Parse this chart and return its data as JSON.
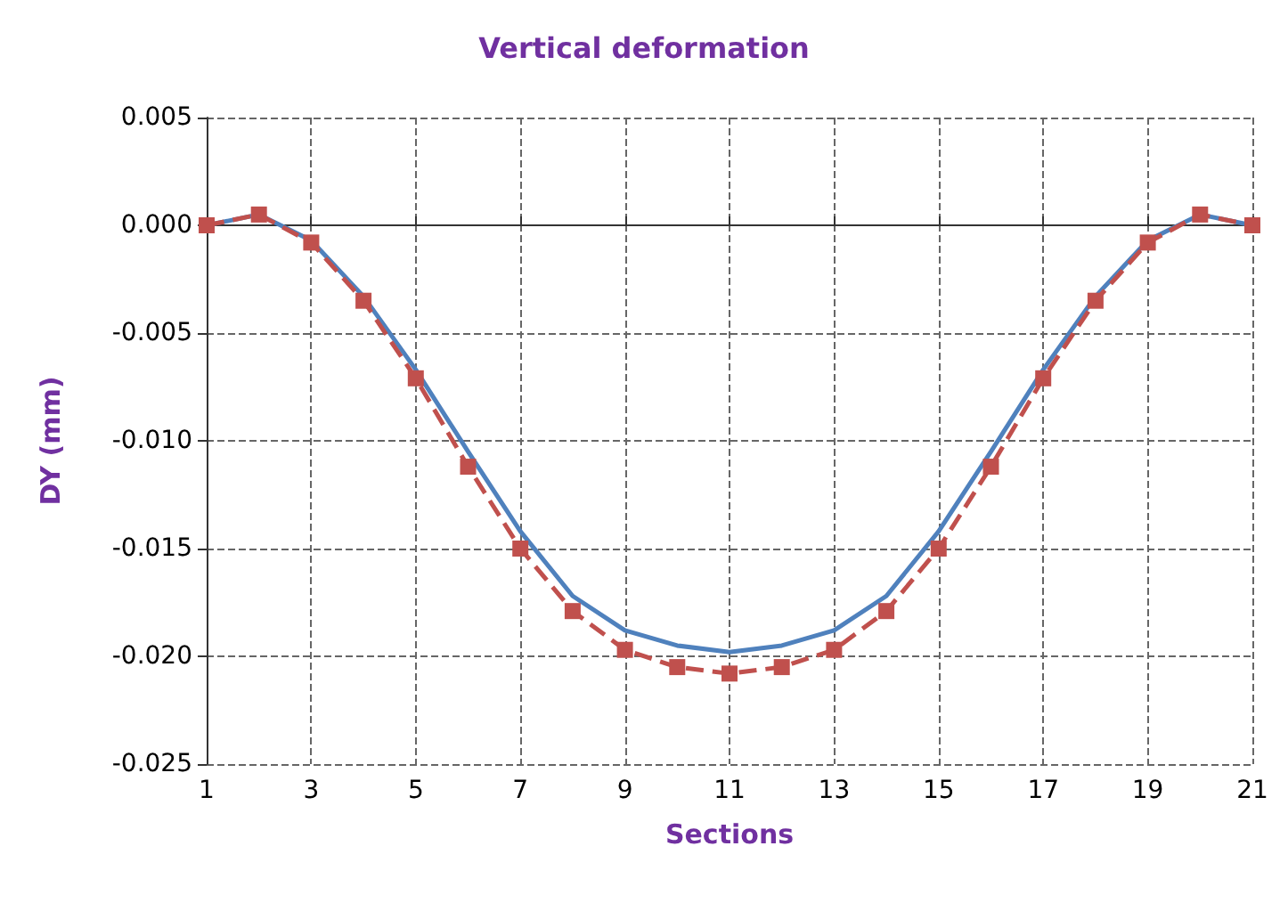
{
  "chart_data": {
    "type": "line",
    "title": "Vertical deformation",
    "xlabel": "Sections",
    "ylabel": "DY (mm)",
    "x": [
      1,
      2,
      3,
      4,
      5,
      6,
      7,
      8,
      9,
      10,
      11,
      12,
      13,
      14,
      15,
      16,
      17,
      18,
      19,
      20,
      21
    ],
    "series": [
      {
        "color": "#4f81bd",
        "line_style": "solid",
        "marker": "none",
        "values": [
          0,
          0.0005,
          -0.0007,
          -0.0033,
          -0.0067,
          -0.0105,
          -0.0142,
          -0.0172,
          -0.0188,
          -0.0195,
          -0.0198,
          -0.0195,
          -0.0188,
          -0.0172,
          -0.0142,
          -0.0105,
          -0.0067,
          -0.0033,
          -0.0007,
          0.0005,
          0
        ]
      },
      {
        "color": "#c0504d",
        "line_style": "dashed",
        "marker": "square",
        "values": [
          0,
          0.0005,
          -0.0008,
          -0.0035,
          -0.0071,
          -0.0112,
          -0.015,
          -0.0179,
          -0.0197,
          -0.0205,
          -0.0208,
          -0.0205,
          -0.0197,
          -0.0179,
          -0.015,
          -0.0112,
          -0.0071,
          -0.0035,
          -0.0008,
          0.0005,
          0
        ]
      }
    ],
    "xlim": [
      1,
      21
    ],
    "xticks": [
      1,
      3,
      5,
      7,
      9,
      11,
      13,
      15,
      17,
      19,
      21
    ],
    "ylim": [
      -0.025,
      0.005
    ],
    "yticks": [
      -0.025,
      {
        "value": -0.02,
        "label": "-0.020"
      },
      -0.015,
      {
        "value": -0.01,
        "label": "-0.010"
      },
      -0.005,
      {
        "value": 0,
        "label": "0.000"
      },
      0.005
    ],
    "grid": true
  }
}
